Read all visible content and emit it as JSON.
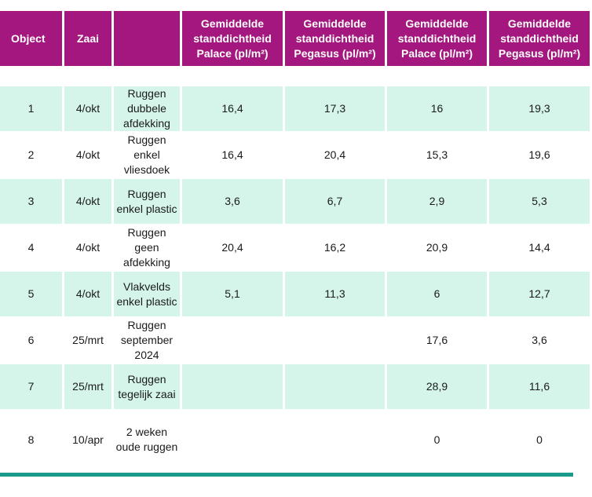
{
  "headers": {
    "object": "Object",
    "zaai": "Zaai",
    "blank": "",
    "c1": "Gemiddelde standdichtheid Palace (pl/m²)",
    "c2": "Gemiddelde standdichtheid Pegasus (pl/m²)",
    "c3": "Gemiddelde standdichtheid Palace (pl/m²)",
    "c4": "Gemiddelde standdichtheid Pegasus (pl/m²)"
  },
  "rows": [
    [
      "1",
      "4/okt",
      "Ruggen dubbele afdekking",
      "16,4",
      "17,3",
      "16",
      "19,3"
    ],
    [
      "2",
      "4/okt",
      "Ruggen enkel vliesdoek",
      "16,4",
      "20,4",
      "15,3",
      "19,6"
    ],
    [
      "3",
      "4/okt",
      "Ruggen enkel plastic",
      "3,6",
      "6,7",
      "2,9",
      "5,3"
    ],
    [
      "4",
      "4/okt",
      "Ruggen geen afdekking",
      "20,4",
      "16,2",
      "20,9",
      "14,4"
    ],
    [
      "5",
      "4/okt",
      "Vlakvelds enkel plastic",
      "5,1",
      "11,3",
      "6",
      "12,7"
    ],
    [
      "6",
      "25/mrt",
      "Ruggen september 2024",
      "",
      "",
      "17,6",
      "3,6"
    ],
    [
      "7",
      "25/mrt",
      "Ruggen tegelijk zaai",
      "",
      "",
      "28,9",
      "11,6"
    ],
    [
      "8",
      "10/apr",
      "2 weken oude ruggen",
      "",
      "",
      "0",
      "0"
    ]
  ],
  "colors": {
    "header_bg": "#a3177e",
    "row_shade": "#d5f5ea",
    "bottom_rule": "#1a9a8c"
  }
}
